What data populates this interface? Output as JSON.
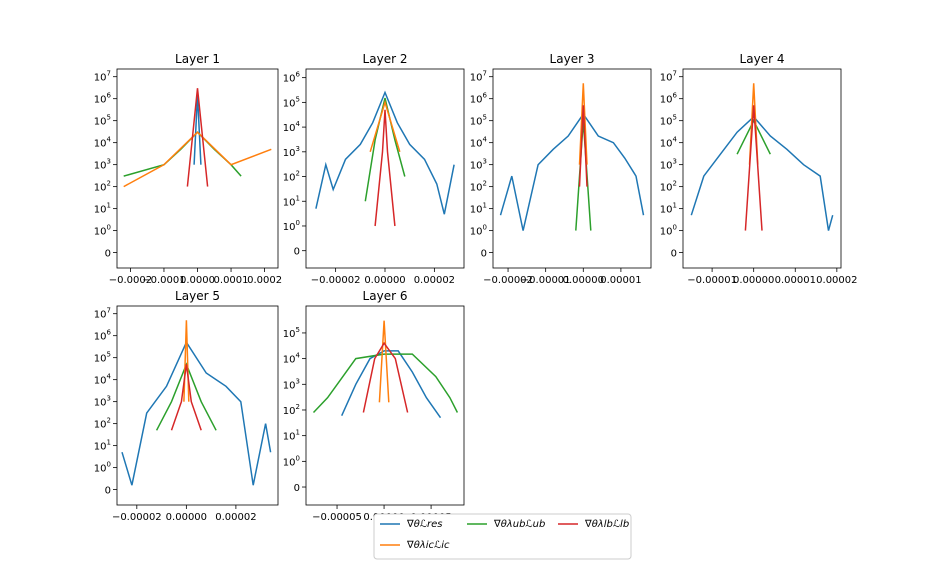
{
  "figure": {
    "panels": [
      {
        "title": "Layer 1",
        "x_ticks": [
          "−0.0002",
          "−0.0001",
          "0.0000",
          "0.0001",
          "0.0002"
        ],
        "x_tick_values": [
          -0.0002,
          -0.0001,
          0.0,
          0.0001,
          0.0002
        ],
        "xlim": [
          -0.00024,
          0.00024
        ],
        "y_ticks": [
          "10^7",
          "10^6",
          "10^5",
          "10^4",
          "10^3",
          "10^2",
          "10^1",
          "10^0",
          "0"
        ],
        "y_tick_values": [
          10000000,
          1000000,
          100000,
          10000,
          1000,
          100,
          10,
          1,
          0
        ]
      },
      {
        "title": "Layer 2",
        "x_ticks": [
          "−0.00002",
          "0.00000",
          "0.00002"
        ],
        "x_tick_values": [
          -2e-05,
          0.0,
          2e-05
        ],
        "xlim": [
          -3.2e-05,
          3.2e-05
        ],
        "y_ticks": [
          "10^6",
          "10^5",
          "10^4",
          "10^3",
          "10^2",
          "10^1",
          "10^0",
          "0"
        ],
        "y_tick_values": [
          1000000,
          100000,
          10000,
          1000,
          100,
          10,
          1,
          0
        ]
      },
      {
        "title": "Layer 3",
        "x_ticks": [
          "−0.00002",
          "−0.00001",
          "0.00000",
          "0.00001"
        ],
        "x_tick_values": [
          -2e-05,
          -1e-05,
          0.0,
          1e-05
        ],
        "xlim": [
          -2.4e-05,
          1.8e-05
        ],
        "y_ticks": [
          "10^7",
          "10^6",
          "10^5",
          "10^4",
          "10^3",
          "10^2",
          "10^1",
          "10^0",
          "0"
        ],
        "y_tick_values": [
          10000000,
          1000000,
          100000,
          10000,
          1000,
          100,
          10,
          1,
          0
        ]
      },
      {
        "title": "Layer 4",
        "x_ticks": [
          "−0.00001",
          "0.00000",
          "0.00001",
          "0.00002"
        ],
        "x_tick_values": [
          -1e-05,
          0.0,
          1e-05,
          2e-05
        ],
        "xlim": [
          -1.7e-05,
          2.1e-05
        ],
        "y_ticks": [
          "10^7",
          "10^6",
          "10^5",
          "10^4",
          "10^3",
          "10^2",
          "10^1",
          "10^0",
          "0"
        ],
        "y_tick_values": [
          10000000,
          1000000,
          100000,
          10000,
          1000,
          100,
          10,
          1,
          0
        ]
      },
      {
        "title": "Layer 5",
        "x_ticks": [
          "−0.00002",
          "0.00000",
          "0.00002"
        ],
        "x_tick_values": [
          -2e-05,
          0.0,
          2e-05
        ],
        "xlim": [
          -2.8e-05,
          3.7e-05
        ],
        "y_ticks": [
          "10^7",
          "10^6",
          "10^5",
          "10^4",
          "10^3",
          "10^2",
          "10^1",
          "10^0",
          "0"
        ],
        "y_tick_values": [
          10000000,
          1000000,
          100000,
          10000,
          1000,
          100,
          10,
          1,
          0
        ]
      },
      {
        "title": "Layer 6",
        "x_ticks": [
          "−0.00005",
          "0.00000",
          "0.00005"
        ],
        "x_tick_values": [
          -5e-05,
          0.0,
          5e-05
        ],
        "xlim": [
          -8.3e-05,
          8.5e-05
        ],
        "y_ticks": [
          "10^5",
          "10^4",
          "10^3",
          "10^2",
          "10^1",
          "10^0",
          "0"
        ],
        "y_tick_values": [
          100000,
          10000,
          1000,
          100,
          10,
          1,
          0
        ]
      }
    ],
    "legend": [
      {
        "label": "∇θℒres",
        "color": "#1f77b4"
      },
      {
        "label": "∇θλubℒub",
        "color": "#2ca02c"
      },
      {
        "label": "∇θλlbℒlb",
        "color": "#d62728"
      },
      {
        "label": "∇θλicℒic",
        "color": "#ff7f0e"
      }
    ]
  },
  "chart_data": [
    {
      "type": "line",
      "title": "Layer 1",
      "xlim": [
        -0.00024,
        0.00024
      ],
      "ylim": [
        0,
        10000000
      ],
      "series": [
        {
          "name": "∇θℒres",
          "x": [
            -1e-05,
            0.0,
            1e-05
          ],
          "y": [
            1000,
            1500000,
            1000
          ]
        },
        {
          "name": "∇θλubℒub",
          "x": [
            -0.00022,
            -0.0001,
            -5e-05,
            0.0,
            5e-05,
            0.0001,
            0.00013
          ],
          "y": [
            300,
            1000,
            5000,
            30000,
            5000,
            1000,
            300
          ]
        },
        {
          "name": "∇θλlbℒlb",
          "x": [
            -3e-05,
            0.0,
            3e-05
          ],
          "y": [
            100,
            3000000,
            100
          ]
        },
        {
          "name": "∇θλicℒic",
          "x": [
            -0.00022,
            -0.0001,
            0.0,
            0.0001,
            0.00022
          ],
          "y": [
            100,
            1000,
            30000,
            1000,
            5000
          ]
        }
      ]
    },
    {
      "type": "line",
      "title": "Layer 2",
      "xlim": [
        -3.2e-05,
        3.2e-05
      ],
      "ylim": [
        0,
        1000000
      ],
      "series": [
        {
          "name": "∇θℒres",
          "x": [
            -2.8e-05,
            -2.4e-05,
            -2.1e-05,
            -1.6e-05,
            -1e-05,
            -5e-06,
            0.0,
            5e-06,
            1e-05,
            1.6e-05,
            2.1e-05,
            2.4e-05,
            2.8e-05
          ],
          "y": [
            5,
            300,
            30,
            500,
            2000,
            15000,
            250000,
            15000,
            2000,
            500,
            50,
            3,
            300
          ]
        },
        {
          "name": "∇θλubℒub",
          "x": [
            -8e-06,
            -4e-06,
            0.0,
            4e-06,
            8e-06
          ],
          "y": [
            10,
            3000,
            150000,
            3000,
            100
          ]
        },
        {
          "name": "∇θλlbℒlb",
          "x": [
            -4e-06,
            -1e-06,
            0.0,
            1e-06,
            4e-06
          ],
          "y": [
            1,
            1000,
            50000,
            1000,
            1
          ]
        },
        {
          "name": "∇θλicℒic",
          "x": [
            -6e-06,
            0.0,
            6e-06
          ],
          "y": [
            1000,
            100000,
            1000
          ]
        }
      ]
    },
    {
      "type": "line",
      "title": "Layer 3",
      "xlim": [
        -2.4e-05,
        1.8e-05
      ],
      "ylim": [
        0,
        10000000
      ],
      "series": [
        {
          "name": "∇θℒres",
          "x": [
            -2.2e-05,
            -1.9e-05,
            -1.6e-05,
            -1.2e-05,
            -8e-06,
            -4e-06,
            0.0,
            4e-06,
            8e-06,
            1.1e-05,
            1.4e-05,
            1.6e-05
          ],
          "y": [
            5,
            300,
            1,
            1000,
            5000,
            20000,
            200000,
            20000,
            10000,
            2000,
            300,
            5
          ]
        },
        {
          "name": "∇θλubℒub",
          "x": [
            -2e-06,
            0.0,
            2e-06
          ],
          "y": [
            1,
            100000,
            1
          ]
        },
        {
          "name": "∇θλlbℒlb",
          "x": [
            -1e-06,
            0.0,
            1e-06
          ],
          "y": [
            100,
            500000,
            100
          ]
        },
        {
          "name": "∇θλicℒic",
          "x": [
            -1e-06,
            0.0,
            1e-06
          ],
          "y": [
            1000,
            5000000,
            1000
          ]
        }
      ]
    },
    {
      "type": "line",
      "title": "Layer 4",
      "xlim": [
        -1.7e-05,
        2.1e-05
      ],
      "ylim": [
        0,
        10000000
      ],
      "series": [
        {
          "name": "∇θℒres",
          "x": [
            -1.5e-05,
            -1.2e-05,
            -8e-06,
            -4e-06,
            0.0,
            4e-06,
            8e-06,
            1.2e-05,
            1.6e-05,
            1.8e-05,
            1.9e-05
          ],
          "y": [
            5,
            300,
            3000,
            30000,
            150000,
            20000,
            5000,
            1000,
            300,
            1,
            5
          ]
        },
        {
          "name": "∇θλubℒub",
          "x": [
            -4e-06,
            0.0,
            4e-06
          ],
          "y": [
            3000,
            100000,
            3000
          ]
        },
        {
          "name": "∇θλlbℒlb",
          "x": [
            -2e-06,
            0.0,
            2e-06
          ],
          "y": [
            1,
            500000,
            1
          ]
        },
        {
          "name": "∇θλicℒic",
          "x": [
            -1e-06,
            0.0,
            1e-06
          ],
          "y": [
            1000,
            5000000,
            1000
          ]
        }
      ]
    },
    {
      "type": "line",
      "title": "Layer 5",
      "xlim": [
        -2.8e-05,
        3.7e-05
      ],
      "ylim": [
        0,
        10000000
      ],
      "series": [
        {
          "name": "∇θℒres",
          "x": [
            -2.6e-05,
            -2.2e-05,
            -1.6e-05,
            -8e-06,
            0.0,
            8e-06,
            1.6e-05,
            2.2e-05,
            2.7e-05,
            3.2e-05,
            3.4e-05
          ],
          "y": [
            5,
            0.2,
            300,
            5000,
            500000,
            20000,
            5000,
            1000,
            0.2,
            100,
            5
          ]
        },
        {
          "name": "∇θλubℒub",
          "x": [
            -1.2e-05,
            -6e-06,
            0.0,
            6e-06,
            1.2e-05
          ],
          "y": [
            50,
            1000,
            50000,
            1000,
            50
          ]
        },
        {
          "name": "∇θλlbℒlb",
          "x": [
            -6e-06,
            -2e-06,
            0.0,
            2e-06,
            6e-06
          ],
          "y": [
            50,
            1000,
            50000,
            1000,
            50
          ]
        },
        {
          "name": "∇θλicℒic",
          "x": [
            -1e-06,
            0.0,
            1e-06
          ],
          "y": [
            1000,
            5000000,
            1000
          ]
        }
      ]
    },
    {
      "type": "line",
      "title": "Layer 6",
      "xlim": [
        -8.3e-05,
        8.5e-05
      ],
      "ylim": [
        0,
        500000
      ],
      "series": [
        {
          "name": "∇θℒres",
          "x": [
            -4.5e-05,
            -3e-05,
            -1.5e-05,
            0.0,
            1.5e-05,
            3e-05,
            4.5e-05,
            6e-05
          ],
          "y": [
            60,
            1000,
            10000,
            20000,
            20000,
            3000,
            300,
            50
          ]
        },
        {
          "name": "∇θλubℒub",
          "x": [
            -7.5e-05,
            -6e-05,
            -3e-05,
            0.0,
            3e-05,
            5.5e-05,
            7e-05,
            7.8e-05
          ],
          "y": [
            80,
            300,
            10000,
            15000,
            15000,
            2000,
            300,
            80
          ]
        },
        {
          "name": "∇θλlbℒlb",
          "x": [
            -2.2e-05,
            -1e-05,
            0.0,
            1.2e-05,
            2.5e-05
          ],
          "y": [
            80,
            10000,
            40000,
            10000,
            80
          ]
        },
        {
          "name": "∇θλicℒic",
          "x": [
            -5e-06,
            0.0,
            5e-06
          ],
          "y": [
            200,
            300000,
            200
          ]
        }
      ]
    }
  ]
}
